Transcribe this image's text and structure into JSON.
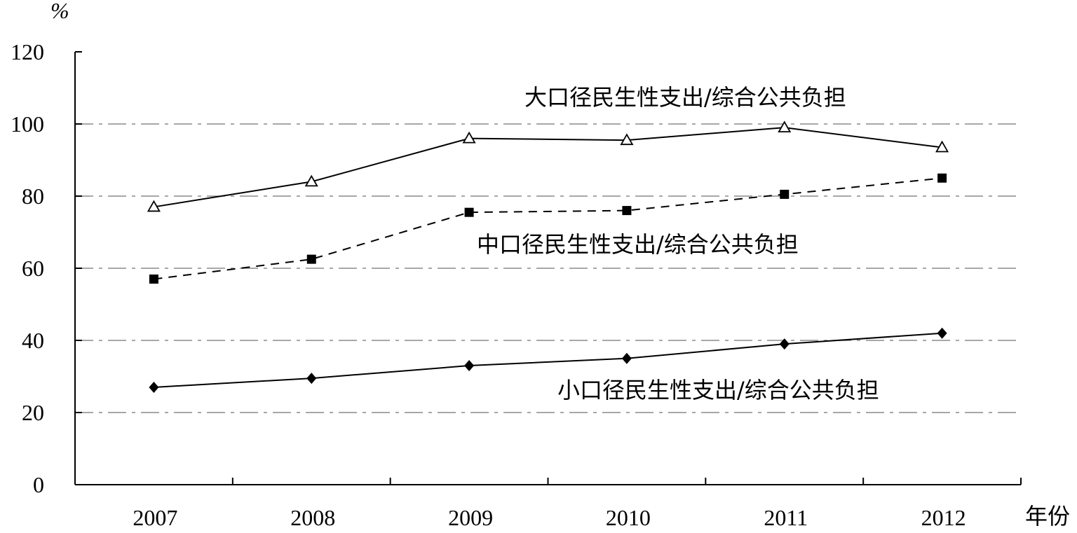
{
  "chart_data": {
    "type": "line",
    "title": "",
    "ylabel": "%",
    "xlabel": "年份",
    "categories": [
      "2007",
      "2008",
      "2009",
      "2010",
      "2011",
      "2012"
    ],
    "ylim": [
      0,
      120
    ],
    "yticks": [
      0,
      20,
      40,
      60,
      80,
      100,
      120
    ],
    "grid": true,
    "legend": "none",
    "series": [
      {
        "name": "大口径民生性支出/综合公共负担",
        "values": [
          77,
          84,
          96,
          95.5,
          99,
          93.5
        ],
        "marker": "open-triangle",
        "line_style": "solid"
      },
      {
        "name": "中口径民生性支出/综合公共负担",
        "values": [
          57,
          62.5,
          75.5,
          76,
          80.5,
          85
        ],
        "marker": "filled-square",
        "line_style": "dashed"
      },
      {
        "name": "小口径民生性支出/综合公共负担",
        "values": [
          27,
          29.5,
          33,
          35,
          39,
          42
        ],
        "marker": "filled-diamond",
        "line_style": "solid"
      }
    ]
  }
}
